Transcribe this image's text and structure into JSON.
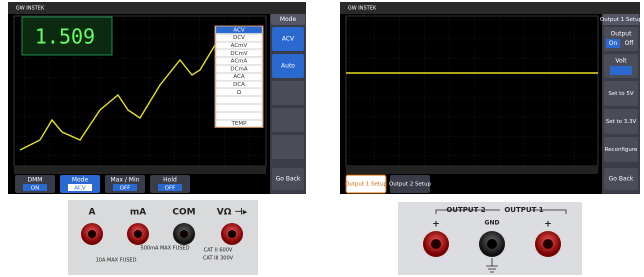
{
  "dmm_screen": {
    "brand": "GW INSTEK",
    "reading": "1.509",
    "menu_title": "Mode",
    "mode_options": [
      "ACV",
      "DCV",
      "ACmV",
      "DCmV",
      "ACmA",
      "DCmA",
      "ACA",
      "DCA",
      "Ω",
      "TEMP"
    ],
    "side_buttons": [
      "ACV",
      "Auto"
    ],
    "go_back": "Go Back",
    "bottom_menu": [
      {
        "label": "DMM",
        "state": "ON"
      },
      {
        "label": "Mode",
        "state": "ACV"
      },
      {
        "label": "Max / Min",
        "state": "OFF"
      },
      {
        "label": "Hold",
        "state": "OFF"
      }
    ]
  },
  "output_screen": {
    "brand": "GW INSTEK",
    "menu_title": "Output 1 Setup",
    "output_label": "Output",
    "on": "On",
    "off": "Off",
    "volt_label": "Volt",
    "side_buttons": [
      "Set to 5V",
      "Set to 3.3V",
      "Reconfigure"
    ],
    "go_back": "Go Back",
    "bottom_menu": [
      "Output 1 Setup",
      "Output 2 Setup"
    ]
  },
  "dmm_terminals": {
    "labels": [
      "A",
      "mA",
      "COM",
      "VΩ ⊣▸"
    ],
    "notes": [
      "10A MAX FUSED",
      "500mA MAX FUSED",
      "CAT II 600V",
      "CAT III 300V"
    ]
  },
  "output_terminals": {
    "output_2": "OUTPUT 2",
    "output_1": "OUTPUT 1",
    "gnd": "GND",
    "plus": "+"
  }
}
